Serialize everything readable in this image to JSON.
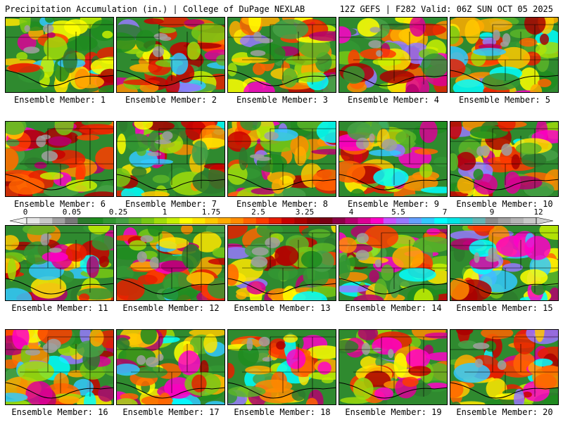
{
  "header": {
    "title_left": "Precipitation Accumulation (in.) | College of DuPage NEXLAB",
    "title_right": "12Z GEFS | F282 Valid: 06Z SUN OCT 05 2025"
  },
  "members": [
    {
      "label": "Ensemble Member: 1",
      "seed": 11,
      "tone": 0.55
    },
    {
      "label": "Ensemble Member: 2",
      "seed": 23,
      "tone": 0.45
    },
    {
      "label": "Ensemble Member: 3",
      "seed": 37,
      "tone": 0.6
    },
    {
      "label": "Ensemble Member: 4",
      "seed": 41,
      "tone": 0.55
    },
    {
      "label": "Ensemble Member: 5",
      "seed": 53,
      "tone": 0.62
    },
    {
      "label": "Ensemble Member: 6",
      "seed": 67,
      "tone": 0.58
    },
    {
      "label": "Ensemble Member: 7",
      "seed": 71,
      "tone": 0.35
    },
    {
      "label": "Ensemble Member: 8",
      "seed": 83,
      "tone": 0.6
    },
    {
      "label": "Ensemble Member: 9",
      "seed": 97,
      "tone": 0.4
    },
    {
      "label": "Ensemble Member: 10",
      "seed": 101,
      "tone": 0.45
    },
    {
      "label": "Ensemble Member: 11",
      "seed": 113,
      "tone": 0.5
    },
    {
      "label": "Ensemble Member: 12",
      "seed": 127,
      "tone": 0.38
    },
    {
      "label": "Ensemble Member: 13",
      "seed": 131,
      "tone": 0.5
    },
    {
      "label": "Ensemble Member: 14",
      "seed": 149,
      "tone": 0.62
    },
    {
      "label": "Ensemble Member: 15",
      "seed": 151,
      "tone": 0.48
    },
    {
      "label": "Ensemble Member: 16",
      "seed": 163,
      "tone": 0.52
    },
    {
      "label": "Ensemble Member: 17",
      "seed": 173,
      "tone": 0.5
    },
    {
      "label": "Ensemble Member: 18",
      "seed": 181,
      "tone": 0.55
    },
    {
      "label": "Ensemble Member: 19",
      "seed": 191,
      "tone": 0.58
    },
    {
      "label": "Ensemble Member: 20",
      "seed": 199,
      "tone": 0.65
    }
  ],
  "colorbar": {
    "ticks": [
      "0",
      "0.05",
      "0.25",
      "1",
      "1.75",
      "2.5",
      "3.25",
      "4",
      "5.5",
      "7",
      "9",
      "12"
    ],
    "colors": [
      "#e6e6e6",
      "#c8c8c8",
      "#a0a0a0",
      "#787878",
      "#2d7a2d",
      "#1e8c1e",
      "#329632",
      "#46a046",
      "#5ab428",
      "#78c814",
      "#a0dc0a",
      "#c8f000",
      "#ffff00",
      "#ffe600",
      "#ffc800",
      "#ffaa00",
      "#ff8c00",
      "#ff6400",
      "#ff3c00",
      "#e61e00",
      "#c80000",
      "#aa0000",
      "#8c0000",
      "#780014",
      "#8c0046",
      "#b4006e",
      "#dc0096",
      "#ff00c8",
      "#c850ff",
      "#9678ff",
      "#64a0ff",
      "#32c8ff",
      "#00ffff",
      "#00e6e6",
      "#32c8c8",
      "#64b4b4",
      "#8c8c8c",
      "#a0a0a0",
      "#b4b4b4",
      "#c8c8c8"
    ]
  }
}
